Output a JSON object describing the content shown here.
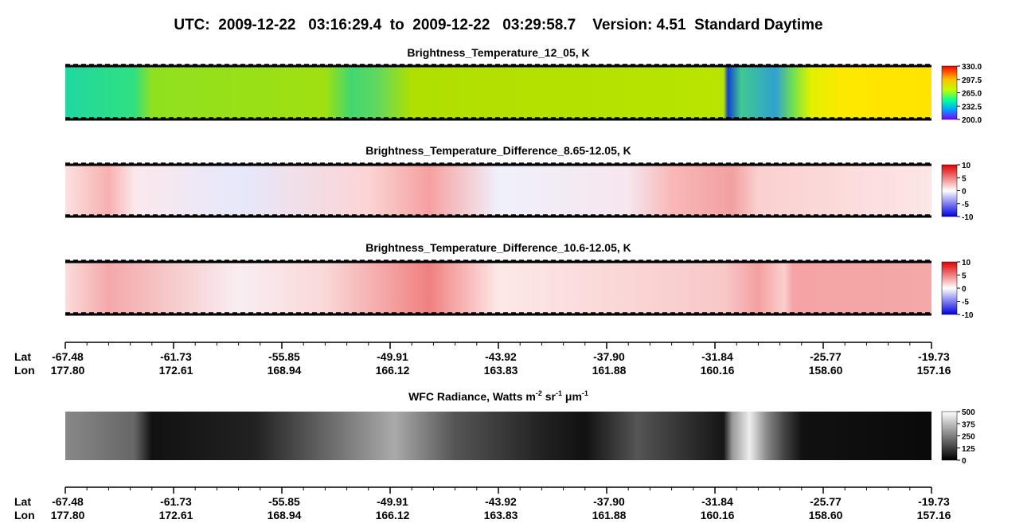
{
  "header": {
    "title": "UTC:  2009-12-22   03:16:29.4  to  2009-12-22   03:29:58.7    Version: 4.51  Standard Daytime"
  },
  "panels": [
    {
      "title": "Brightness_Temperature_12_05, K",
      "colorbar": [
        "330.0",
        "297.5",
        "265.0",
        "232.5",
        "200.0"
      ]
    },
    {
      "title": "Brightness_Temperature_Difference_8.65-12.05, K",
      "colorbar": [
        "10",
        "5",
        "0",
        "-5",
        "-10"
      ]
    },
    {
      "title": "Brightness_Temperature_Difference_10.6-12.05, K",
      "colorbar": [
        "10",
        "5",
        "0",
        "-5",
        "-10"
      ]
    },
    {
      "title": [
        "WFC Radiance, Watts m",
        "-2",
        " sr",
        "-1",
        " μm",
        "-1"
      ],
      "colorbar": [
        "500",
        "375",
        "250",
        "125",
        "0"
      ]
    }
  ],
  "axes": [
    {
      "lat_label": "Lat",
      "lon_label": "Lon",
      "lat": [
        "-67.48",
        "-61.73",
        "-55.85",
        "-49.91",
        "-43.92",
        "-37.90",
        "-31.84",
        "-25.77",
        "-19.73"
      ],
      "lon": [
        "177.80",
        "172.61",
        "168.94",
        "166.12",
        "163.83",
        "161.88",
        "160.16",
        "158.60",
        "157.16"
      ]
    },
    {
      "lat_label": "Lat",
      "lon_label": "Lon",
      "lat": [
        "-67.48",
        "-61.73",
        "-55.85",
        "-49.91",
        "-43.92",
        "-37.90",
        "-31.84",
        "-25.77",
        "-19.73"
      ],
      "lon": [
        "177.80",
        "172.61",
        "168.94",
        "166.12",
        "163.83",
        "161.88",
        "160.16",
        "158.60",
        "157.16"
      ]
    }
  ]
}
